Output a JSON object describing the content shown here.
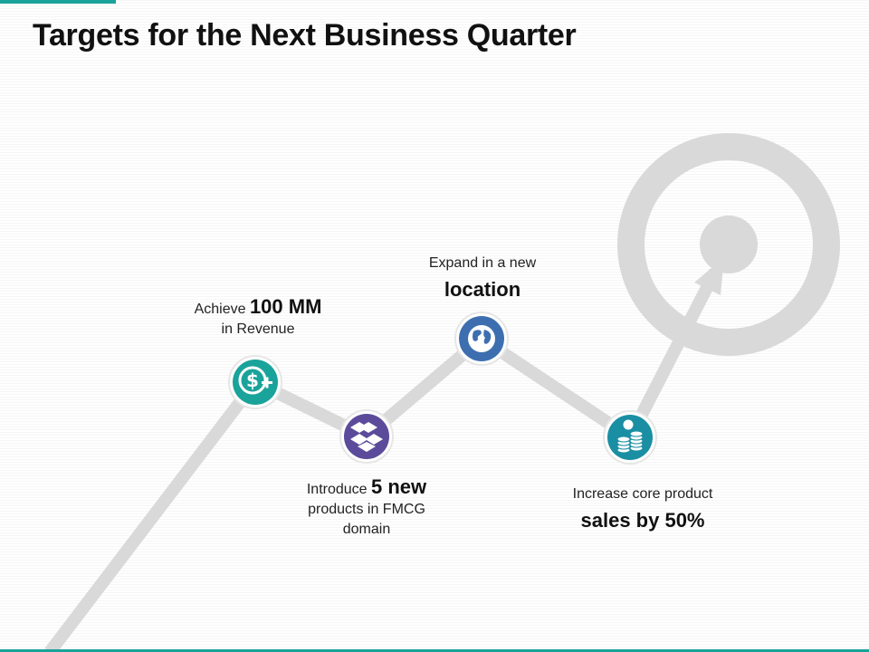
{
  "title": "Targets for the Next Business Quarter",
  "colors": {
    "accent": "#1aa39a",
    "revenue": "#1aa39a",
    "products": "#5b4b9a",
    "location": "#3d6fb0",
    "sales": "#1a8fa3",
    "track": "#d9d9d9"
  },
  "milestones": [
    {
      "icon": "dollar-plus-icon",
      "pre": "Achieve",
      "highlight": "100 MM",
      "post": "in Revenue"
    },
    {
      "icon": "dropbox-box-icon",
      "pre": "Introduce",
      "highlight": "5 new",
      "post": "products in FMCG domain"
    },
    {
      "icon": "globe-icon",
      "pre": "Expand in a new",
      "highlight": "location",
      "post": ""
    },
    {
      "icon": "coin-stacks-icon",
      "pre": "Increase core product",
      "highlight": "sales by 50%",
      "post": ""
    }
  ],
  "target_icon": "target-bullseye-icon"
}
